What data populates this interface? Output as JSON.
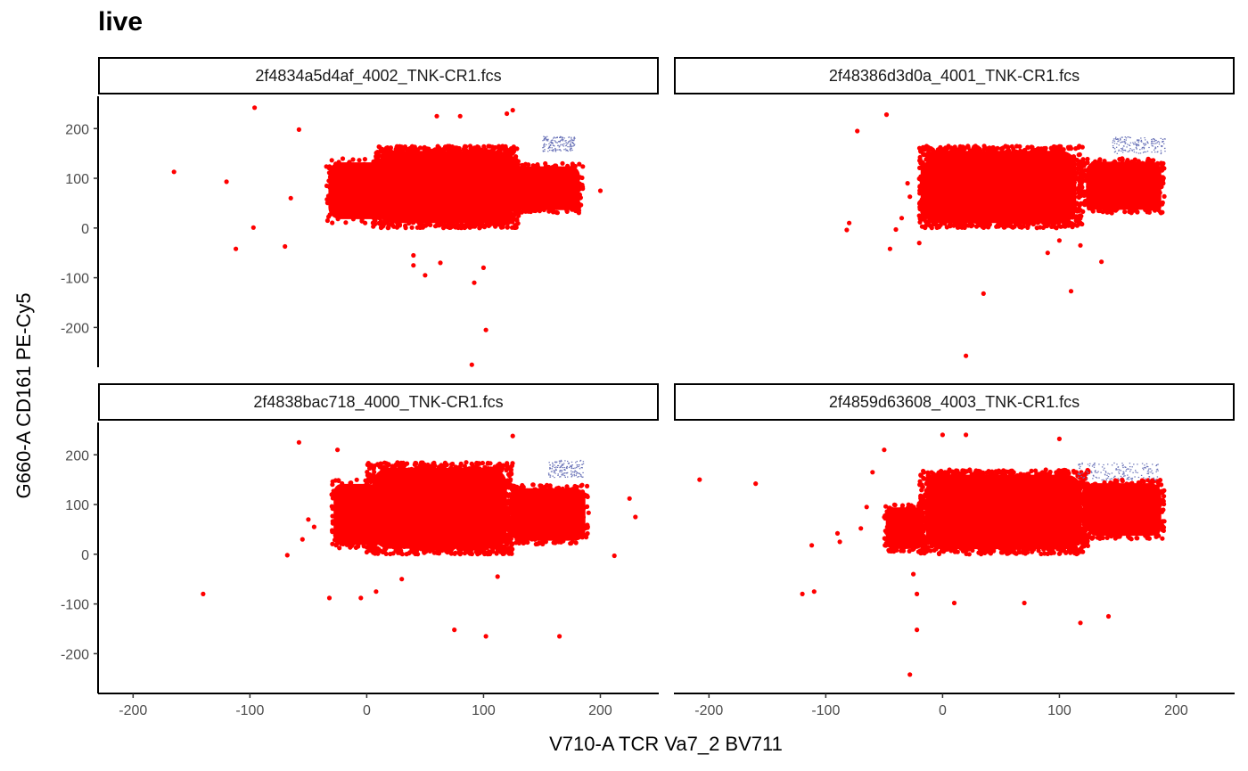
{
  "chart_data": {
    "type": "scatter",
    "title": "live",
    "xlabel": "V710-A TCR Va7_2 BV711",
    "ylabel": "G660-A CD161 PE-Cy5",
    "xlim": [
      -230,
      250
    ],
    "ylim": [
      -280,
      265
    ],
    "x_ticks": [
      -200,
      -100,
      0,
      100,
      200
    ],
    "y_ticks": [
      -200,
      -100,
      0,
      100,
      200
    ],
    "grid": false,
    "legend": "none",
    "colors": {
      "main": "#ff0000",
      "gate": "#6b74b8"
    },
    "panels": [
      {
        "name": "2f4834a5d4af_4002_TNK-CR1.fcs",
        "clusters": [
          {
            "x": [
              5,
              130
            ],
            "y": [
              0,
              165
            ],
            "n": 1800,
            "color": "main"
          },
          {
            "x": [
              -35,
              20
            ],
            "y": [
              10,
              140
            ],
            "n": 160,
            "color": "main"
          },
          {
            "x": [
              120,
              185
            ],
            "y": [
              30,
              130
            ],
            "n": 350,
            "color": "main"
          },
          {
            "x": [
              150,
              178
            ],
            "y": [
              155,
              185
            ],
            "n": 160,
            "color": "gate"
          }
        ],
        "outliers": [
          [
            -165,
            113
          ],
          [
            -120,
            93
          ],
          [
            -96,
            242
          ],
          [
            -112,
            -42
          ],
          [
            -97,
            1
          ],
          [
            -70,
            -37
          ],
          [
            -65,
            60
          ],
          [
            -58,
            198
          ],
          [
            40,
            -55
          ],
          [
            40,
            -75
          ],
          [
            50,
            -95
          ],
          [
            63,
            -70
          ],
          [
            92,
            -110
          ],
          [
            100,
            -80
          ],
          [
            102,
            -205
          ],
          [
            90,
            -275
          ],
          [
            125,
            237
          ],
          [
            120,
            230
          ],
          [
            200,
            75
          ],
          [
            60,
            225
          ],
          [
            80,
            225
          ]
        ]
      },
      {
        "name": "2f48386d3d0a_4001_TNK-CR1.fcs",
        "clusters": [
          {
            "x": [
              -20,
              120
            ],
            "y": [
              0,
              165
            ],
            "n": 1800,
            "color": "main"
          },
          {
            "x": [
              -20,
              10
            ],
            "y": [
              10,
              140
            ],
            "n": 120,
            "color": "main"
          },
          {
            "x": [
              120,
              190
            ],
            "y": [
              30,
              140
            ],
            "n": 380,
            "color": "main"
          },
          {
            "x": [
              145,
              190
            ],
            "y": [
              150,
              185
            ],
            "n": 170,
            "color": "gate"
          }
        ],
        "outliers": [
          [
            -82,
            -4
          ],
          [
            -80,
            10
          ],
          [
            -73,
            195
          ],
          [
            -48,
            228
          ],
          [
            -45,
            -42
          ],
          [
            -40,
            -3
          ],
          [
            -35,
            20
          ],
          [
            -30,
            90
          ],
          [
            -28,
            63
          ],
          [
            -20,
            -30
          ],
          [
            35,
            -132
          ],
          [
            20,
            -257
          ],
          [
            110,
            -127
          ],
          [
            136,
            -68
          ],
          [
            90,
            -50
          ],
          [
            100,
            -25
          ],
          [
            118,
            -35
          ]
        ]
      },
      {
        "name": "2f4838bac718_4000_TNK-CR1.fcs",
        "clusters": [
          {
            "x": [
              0,
              125
            ],
            "y": [
              0,
              185
            ],
            "n": 1800,
            "color": "main"
          },
          {
            "x": [
              -30,
              10
            ],
            "y": [
              10,
              150
            ],
            "n": 200,
            "color": "main"
          },
          {
            "x": [
              120,
              190
            ],
            "y": [
              20,
              140
            ],
            "n": 380,
            "color": "main"
          },
          {
            "x": [
              155,
              185
            ],
            "y": [
              155,
              190
            ],
            "n": 150,
            "color": "gate"
          }
        ],
        "outliers": [
          [
            -140,
            -80
          ],
          [
            -58,
            225
          ],
          [
            -68,
            -2
          ],
          [
            -55,
            30
          ],
          [
            -50,
            70
          ],
          [
            -45,
            55
          ],
          [
            -32,
            -88
          ],
          [
            -5,
            -88
          ],
          [
            8,
            -75
          ],
          [
            30,
            -50
          ],
          [
            75,
            -152
          ],
          [
            102,
            -165
          ],
          [
            112,
            -45
          ],
          [
            125,
            238
          ],
          [
            165,
            -165
          ],
          [
            212,
            -3
          ],
          [
            225,
            112
          ],
          [
            230,
            75
          ],
          [
            -30,
            120
          ],
          [
            -25,
            210
          ]
        ]
      },
      {
        "name": "2f4859d63608_4003_TNK-CR1.fcs",
        "clusters": [
          {
            "x": [
              -20,
              125
            ],
            "y": [
              0,
              170
            ],
            "n": 1800,
            "color": "main"
          },
          {
            "x": [
              -50,
              -15
            ],
            "y": [
              5,
              100
            ],
            "n": 160,
            "color": "main"
          },
          {
            "x": [
              120,
              190
            ],
            "y": [
              30,
              150
            ],
            "n": 380,
            "color": "main"
          },
          {
            "x": [
              115,
              185
            ],
            "y": [
              150,
              185
            ],
            "n": 170,
            "color": "gate"
          }
        ],
        "outliers": [
          [
            -208,
            150
          ],
          [
            -160,
            142
          ],
          [
            -120,
            -80
          ],
          [
            -110,
            -75
          ],
          [
            -112,
            18
          ],
          [
            -90,
            42
          ],
          [
            -88,
            25
          ],
          [
            -70,
            52
          ],
          [
            -65,
            95
          ],
          [
            -60,
            165
          ],
          [
            -50,
            210
          ],
          [
            -28,
            -242
          ],
          [
            -22,
            -152
          ],
          [
            -22,
            -80
          ],
          [
            -25,
            -40
          ],
          [
            10,
            -98
          ],
          [
            70,
            -98
          ],
          [
            118,
            -138
          ],
          [
            142,
            -125
          ],
          [
            0,
            240
          ],
          [
            100,
            232
          ],
          [
            20,
            240
          ]
        ]
      }
    ]
  }
}
